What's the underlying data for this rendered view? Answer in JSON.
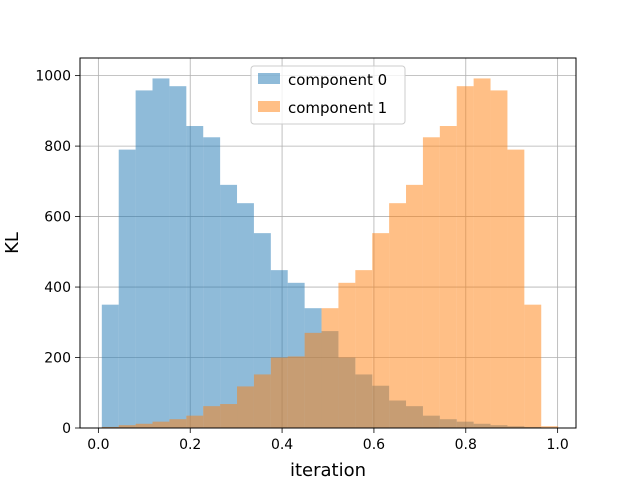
{
  "chart_data": {
    "type": "bar",
    "title": "",
    "xlabel": "iteration",
    "ylabel": "KL",
    "xlim": [
      -0.04,
      1.04
    ],
    "ylim": [
      0,
      1050
    ],
    "xticks": [
      "0.0",
      "0.2",
      "0.4",
      "0.6",
      "0.8",
      "1.0"
    ],
    "yticks": [
      "0",
      "200",
      "400",
      "600",
      "800",
      "1000"
    ],
    "grid": true,
    "legend_position": "upper center",
    "bin_edges": [
      0.0075,
      0.0443,
      0.0811,
      0.1179,
      0.1547,
      0.1915,
      0.2283,
      0.2651,
      0.3019,
      0.3387,
      0.3755,
      0.4123,
      0.4491,
      0.4859,
      0.5227,
      0.5595,
      0.5963,
      0.6331,
      0.6699,
      0.7067,
      0.7435,
      0.7803,
      0.8171,
      0.8539,
      0.8907,
      0.9275,
      0.9643,
      1.0011
    ],
    "series": [
      {
        "name": "component 0",
        "color": "#1f77b4",
        "alpha": 0.5,
        "values": [
          350,
          790,
          958,
          992,
          970,
          857,
          825,
          690,
          638,
          553,
          448,
          412,
          340,
          275,
          200,
          152,
          120,
          78,
          62,
          35,
          25,
          18,
          12,
          8,
          5,
          3,
          1
        ]
      },
      {
        "name": "component 1",
        "color": "#ff7f0e",
        "alpha": 0.5,
        "values": [
          3,
          8,
          12,
          18,
          25,
          35,
          62,
          68,
          118,
          152,
          200,
          203,
          270,
          340,
          412,
          448,
          553,
          638,
          690,
          825,
          857,
          970,
          992,
          958,
          790,
          350,
          5
        ]
      }
    ]
  }
}
